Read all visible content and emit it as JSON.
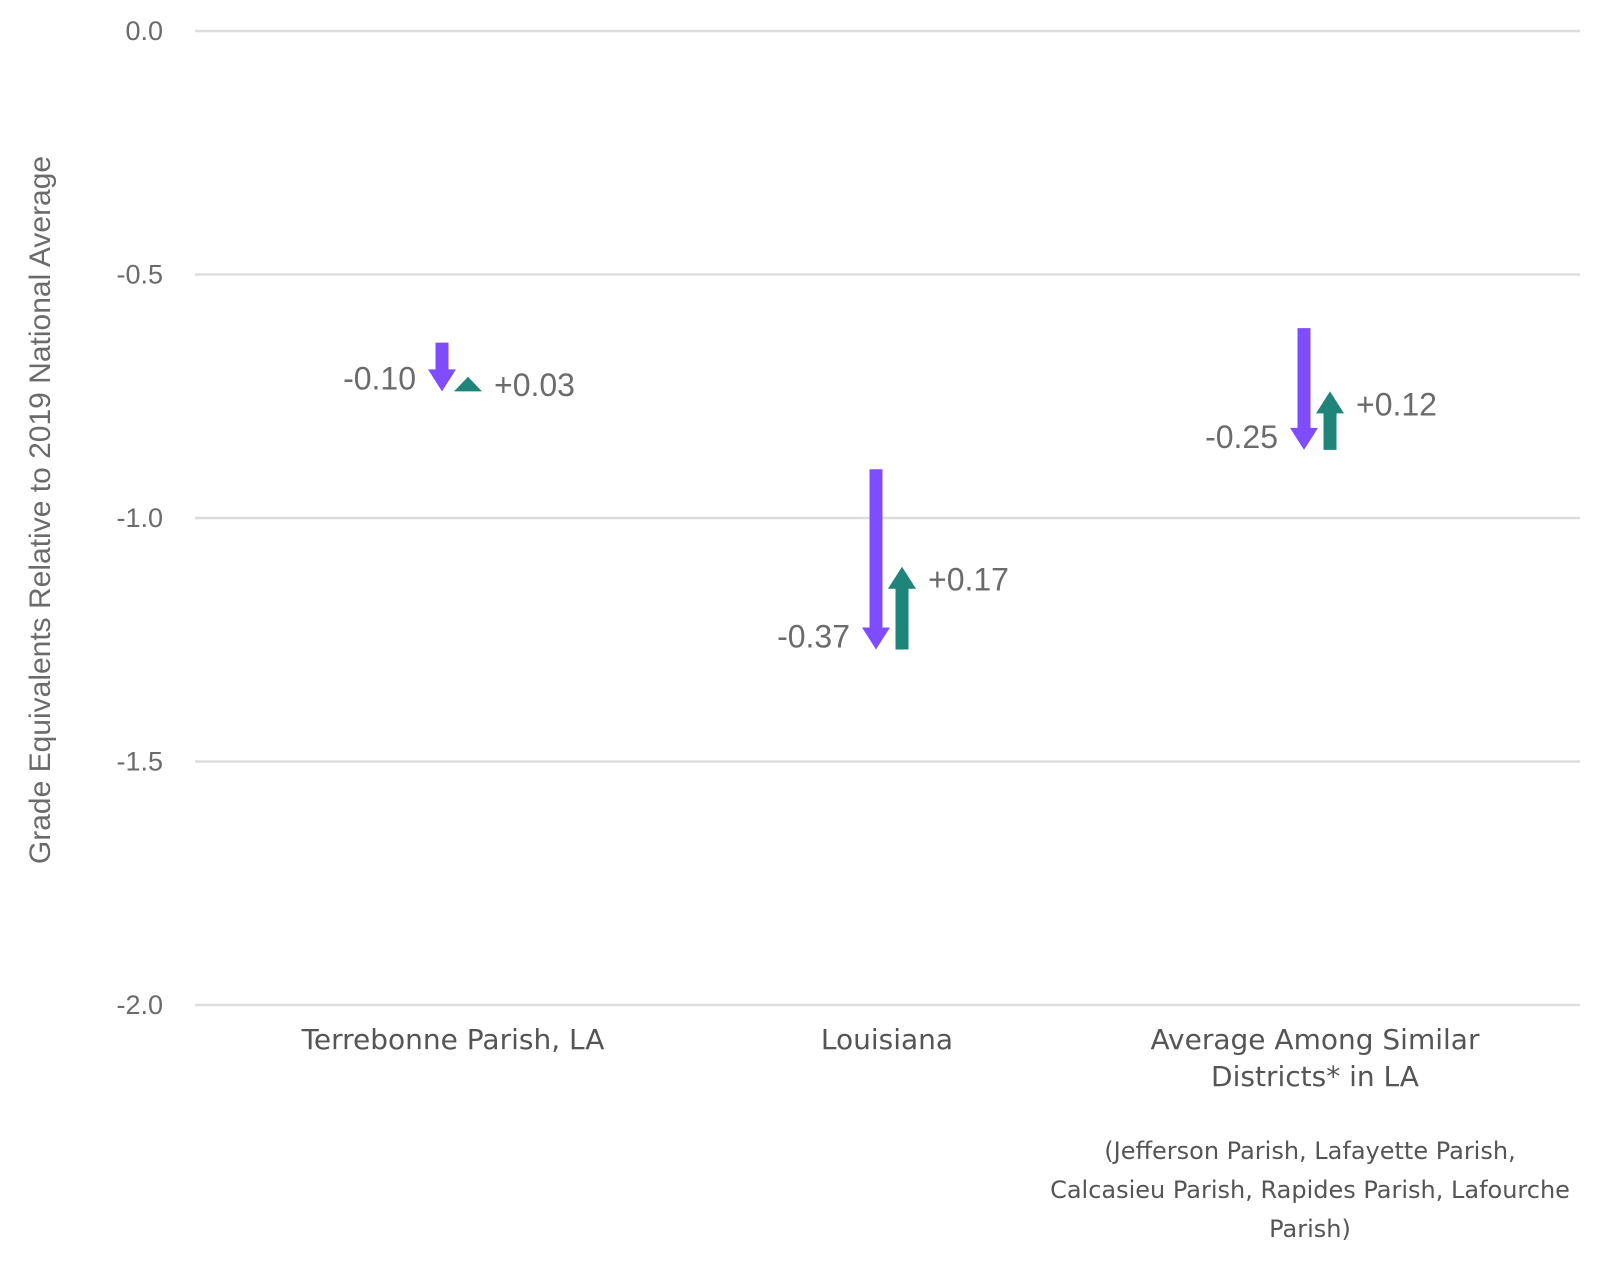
{
  "chart_data": {
    "type": "arrow",
    "ylabel": "Grade Equivalents Relative to 2019 National Average",
    "ylim": [
      -2.0,
      0.0
    ],
    "yticks": [
      0.0,
      -0.5,
      -1.0,
      -1.5,
      -2.0
    ],
    "ytick_labels": [
      "0.0",
      "-0.5",
      "-1.0",
      "-1.5",
      "-2.0"
    ],
    "grid": true,
    "colors": {
      "decline": "#7f4cff",
      "recovery": "#1f847a",
      "grid": "#dddddd"
    },
    "categories": [
      {
        "label_lines": [
          "Terrebonne Parish, LA"
        ],
        "note_lines": [],
        "decline": {
          "start": -0.64,
          "end": -0.74,
          "label": "-0.10"
        },
        "recovery": {
          "start": -0.74,
          "end": -0.71,
          "label": "+0.03"
        }
      },
      {
        "label_lines": [
          "Louisiana"
        ],
        "note_lines": [],
        "decline": {
          "start": -0.9,
          "end": -1.27,
          "label": "-0.37"
        },
        "recovery": {
          "start": -1.27,
          "end": -1.1,
          "label": "+0.17"
        }
      },
      {
        "label_lines": [
          "Average Among Similar",
          "Districts* in LA"
        ],
        "note_lines": [
          "(Jefferson Parish, Lafayette Parish,",
          "Calcasieu Parish, Rapides Parish, Lafourche",
          "Parish)"
        ],
        "decline": {
          "start": -0.61,
          "end": -0.86,
          "label": "-0.25"
        },
        "recovery": {
          "start": -0.86,
          "end": -0.74,
          "label": "+0.12"
        }
      }
    ]
  }
}
